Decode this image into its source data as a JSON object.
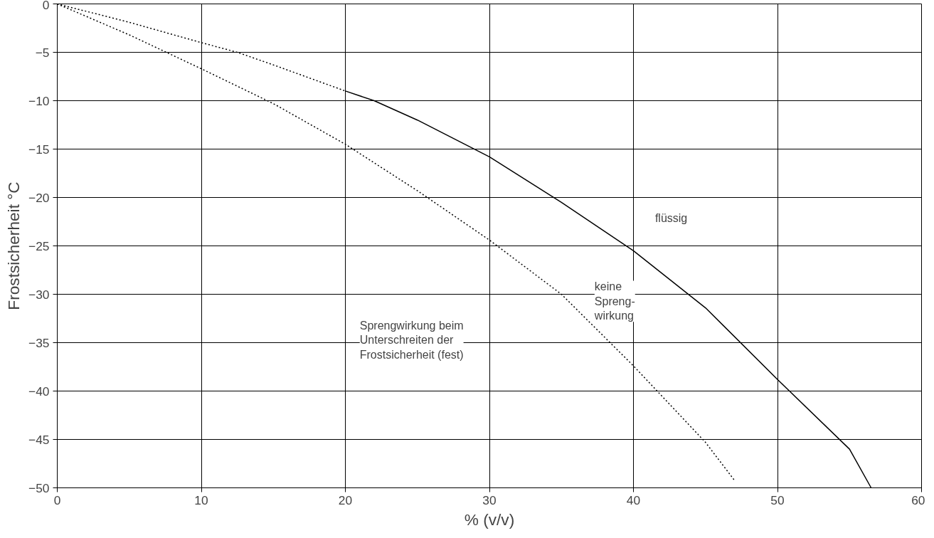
{
  "chart_data": {
    "type": "line",
    "xlabel": "% (v/v)",
    "ylabel": "Frostsicherheit °C",
    "xlim": [
      0,
      60
    ],
    "xticks": [
      0,
      10,
      20,
      30,
      40,
      50,
      60
    ],
    "ylim": [
      -50,
      0
    ],
    "yticks": [
      0,
      -5,
      -10,
      -15,
      -20,
      -25,
      -30,
      -35,
      -40,
      -45,
      -50
    ],
    "grid": true,
    "marker": "none",
    "series": [
      {
        "color": "#000000",
        "line_style": "dotted",
        "x": [
          0,
          5,
          10,
          12.5,
          15,
          20
        ],
        "values": [
          0,
          -1.9,
          -4,
          -5,
          -6.3,
          -9
        ]
      },
      {
        "color": "#000000",
        "line_style": "solid",
        "x": [
          20,
          22,
          25,
          30,
          35,
          40,
          45,
          50,
          55,
          56.5
        ],
        "values": [
          -9,
          -10,
          -12,
          -15.8,
          -20.5,
          -25.5,
          -31.4,
          -38.8,
          -46,
          -50
        ]
      },
      {
        "color": "#000000",
        "line_style": "dotted",
        "x": [
          0,
          5,
          10,
          15,
          20,
          25,
          30,
          35,
          40,
          45,
          47
        ],
        "values": [
          0,
          -3.2,
          -6.7,
          -10.3,
          -14.5,
          -19.3,
          -24.4,
          -30,
          -37.4,
          -45.3,
          -49.2
        ]
      }
    ],
    "annotations": [
      "flüssig",
      "keine\nSpreng-\nwirkung",
      "Sprengwirkung beim\nUnterschreiten der\nFrostsicherheit (fest)"
    ]
  }
}
